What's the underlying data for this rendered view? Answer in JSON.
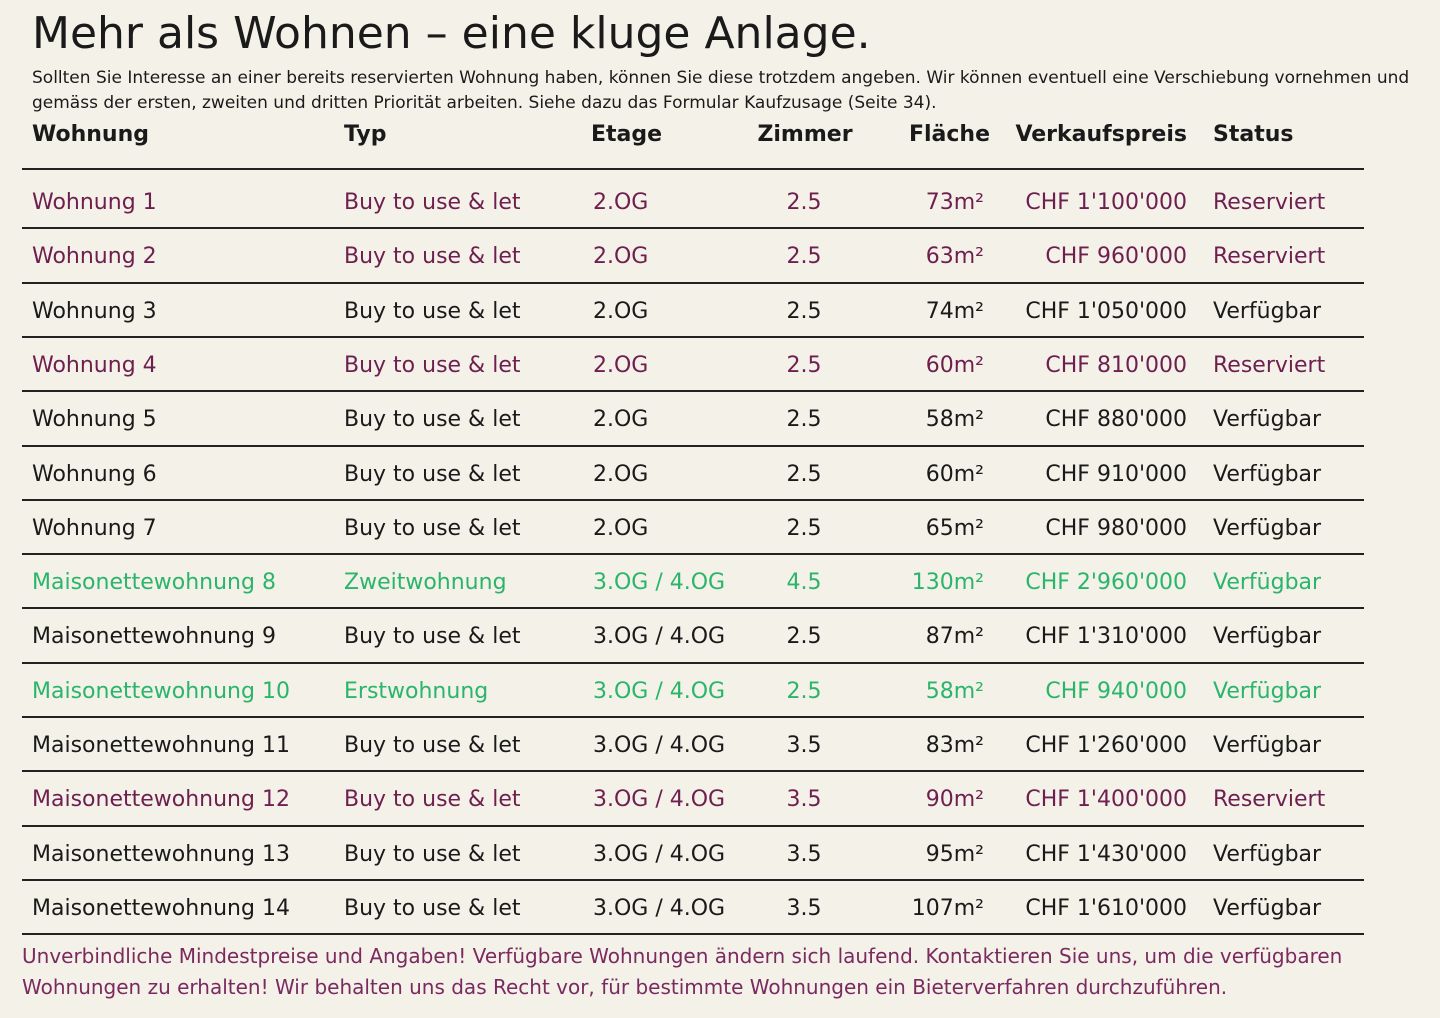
{
  "header": {
    "title": "Mehr als Wohnen – eine kluge Anlage.",
    "intro": [
      "Sollten Sie Interesse an einer bereits reservierten Wohnung haben, können Sie diese trotzdem angeben. Wir können eventuell eine Verschiebung vornehmen und",
      "gemäss der ersten, zweiten und dritten Priorität arbeiten. Siehe dazu das Formular Kaufzusage (Seite 34)."
    ]
  },
  "table": {
    "columns": [
      "Wohnung",
      "Typ",
      "Etage",
      "Zimmer",
      "Fläche",
      "Verkaufspreis",
      "Status"
    ],
    "rows": [
      {
        "color": "#6e1f4f",
        "cells": [
          "Wohnung 1",
          "Buy to use & let",
          "2.OG",
          "2.5",
          "73m²",
          "CHF 1'100'000",
          "Reserviert"
        ]
      },
      {
        "color": "#6e1f4f",
        "cells": [
          "Wohnung 2",
          "Buy to use & let",
          "2.OG",
          "2.5",
          "63m²",
          "CHF 960'000",
          "Reserviert"
        ]
      },
      {
        "color": "#1a1a1a",
        "cells": [
          "Wohnung 3",
          "Buy to use & let",
          "2.OG",
          "2.5",
          "74m²",
          "CHF 1'050'000",
          "Verfügbar"
        ]
      },
      {
        "color": "#6e1f4f",
        "cells": [
          "Wohnung 4",
          "Buy to use & let",
          "2.OG",
          "2.5",
          "60m²",
          "CHF 810'000",
          "Reserviert"
        ]
      },
      {
        "color": "#1a1a1a",
        "cells": [
          "Wohnung 5",
          "Buy to use & let",
          "2.OG",
          "2.5",
          "58m²",
          "CHF 880'000",
          "Verfügbar"
        ]
      },
      {
        "color": "#1a1a1a",
        "cells": [
          "Wohnung 6",
          "Buy to use & let",
          "2.OG",
          "2.5",
          "60m²",
          "CHF 910'000",
          "Verfügbar"
        ]
      },
      {
        "color": "#1a1a1a",
        "cells": [
          "Wohnung 7",
          "Buy to use & let",
          "2.OG",
          "2.5",
          "65m²",
          "CHF 980'000",
          "Verfügbar"
        ]
      },
      {
        "color": "#2bb56a",
        "cells": [
          "Maisonettewohnung 8",
          "Zweitwohnung",
          "3.OG / 4.OG",
          "4.5",
          "130m²",
          "CHF 2'960'000",
          "Verfügbar"
        ]
      },
      {
        "color": "#1a1a1a",
        "cells": [
          "Maisonettewohnung 9",
          "Buy to use & let",
          "3.OG / 4.OG",
          "2.5",
          "87m²",
          "CHF 1'310'000",
          "Verfügbar"
        ]
      },
      {
        "color": "#2bb56a",
        "cells": [
          "Maisonettewohnung 10",
          "Erstwohnung",
          "3.OG / 4.OG",
          "2.5",
          "58m²",
          "CHF 940'000",
          "Verfügbar"
        ]
      },
      {
        "color": "#1a1a1a",
        "cells": [
          "Maisonettewohnung 11",
          "Buy to use & let",
          "3.OG / 4.OG",
          "3.5",
          "83m²",
          "CHF 1'260'000",
          "Verfügbar"
        ]
      },
      {
        "color": "#6e1f4f",
        "cells": [
          "Maisonettewohnung 12",
          "Buy to use & let",
          "3.OG / 4.OG",
          "3.5",
          "90m²",
          "CHF 1'400'000",
          "Reserviert"
        ]
      },
      {
        "color": "#1a1a1a",
        "cells": [
          "Maisonettewohnung 13",
          "Buy to use & let",
          "3.OG / 4.OG",
          "3.5",
          "95m²",
          "CHF 1'430'000",
          "Verfügbar"
        ]
      },
      {
        "color": "#1a1a1a",
        "cells": [
          "Maisonettewohnung 14",
          "Buy to use & let",
          "3.OG / 4.OG",
          "3.5",
          "107m²",
          "CHF 1'610'000",
          "Verfügbar"
        ]
      }
    ]
  },
  "footer": [
    "Unverbindliche Mindestpreise und Angaben! Verfügbare Wohnungen ändern sich laufend. Kontaktieren Sie uns, um die verfügbaren",
    "Wohnungen zu erhalten! Wir behalten uns das Recht vor, für bestimmte Wohnungen ein Bieterverfahren durchzuführen."
  ]
}
